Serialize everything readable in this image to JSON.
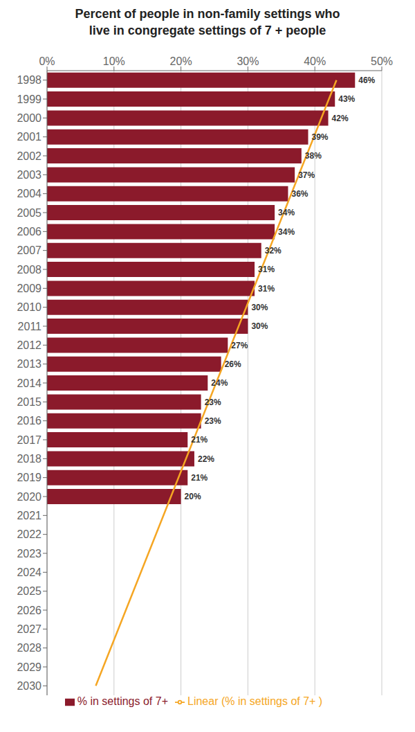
{
  "chart_data": {
    "type": "bar",
    "orientation": "horizontal",
    "title": "Percent of people in non-family settings who\nlive in congregate settings of 7 + people",
    "categories": [
      "1998",
      "1999",
      "2000",
      "2001",
      "2002",
      "2003",
      "2004",
      "2005",
      "2006",
      "2007",
      "2008",
      "2009",
      "2010",
      "2011",
      "2012",
      "2013",
      "2014",
      "2015",
      "2016",
      "2017",
      "2018",
      "2019",
      "2020",
      "2021",
      "2022",
      "2023",
      "2024",
      "2025",
      "2026",
      "2027",
      "2028",
      "2029",
      "2030"
    ],
    "series": [
      {
        "name": "% in settings of 7+",
        "type": "bar",
        "color": "#8B1A2B",
        "values": [
          46,
          43,
          42,
          39,
          38,
          37,
          36,
          34,
          34,
          32,
          31,
          31,
          30,
          30,
          27,
          26,
          24,
          23,
          23,
          21,
          22,
          21,
          20,
          null,
          null,
          null,
          null,
          null,
          null,
          null,
          null,
          null,
          null
        ],
        "value_labels": [
          "46%",
          "43%",
          "42%",
          "39%",
          "38%",
          "37%",
          "36%",
          "34%",
          "34%",
          "32%",
          "31%",
          "31%",
          "30%",
          "30%",
          "27%",
          "26%",
          "24%",
          "23%",
          "23%",
          "21%",
          "22%",
          "21%",
          "20%",
          null,
          null,
          null,
          null,
          null,
          null,
          null,
          null,
          null,
          null
        ]
      },
      {
        "name": "Linear (% in settings of 7+ )",
        "type": "line",
        "color": "#F5A623",
        "values": [
          43.23,
          42.1,
          40.98,
          39.86,
          38.73,
          37.61,
          36.49,
          35.36,
          34.24,
          33.12,
          31.99,
          30.87,
          29.75,
          28.62,
          27.5,
          26.38,
          25.25,
          24.13,
          23.0,
          21.88,
          20.76,
          19.63,
          18.51,
          17.39,
          16.26,
          15.14,
          14.02,
          12.89,
          11.77,
          10.65,
          9.52,
          8.4,
          7.28
        ]
      }
    ],
    "xlim": [
      0,
      50
    ],
    "xticks": [
      {
        "value": 0,
        "label": "0%"
      },
      {
        "value": 10,
        "label": "10%"
      },
      {
        "value": 20,
        "label": "20%"
      },
      {
        "value": 30,
        "label": "30%"
      },
      {
        "value": 40,
        "label": "40%"
      },
      {
        "value": 50,
        "label": "50%"
      }
    ],
    "grid": true,
    "legend": "bottom",
    "data_labels": true
  }
}
